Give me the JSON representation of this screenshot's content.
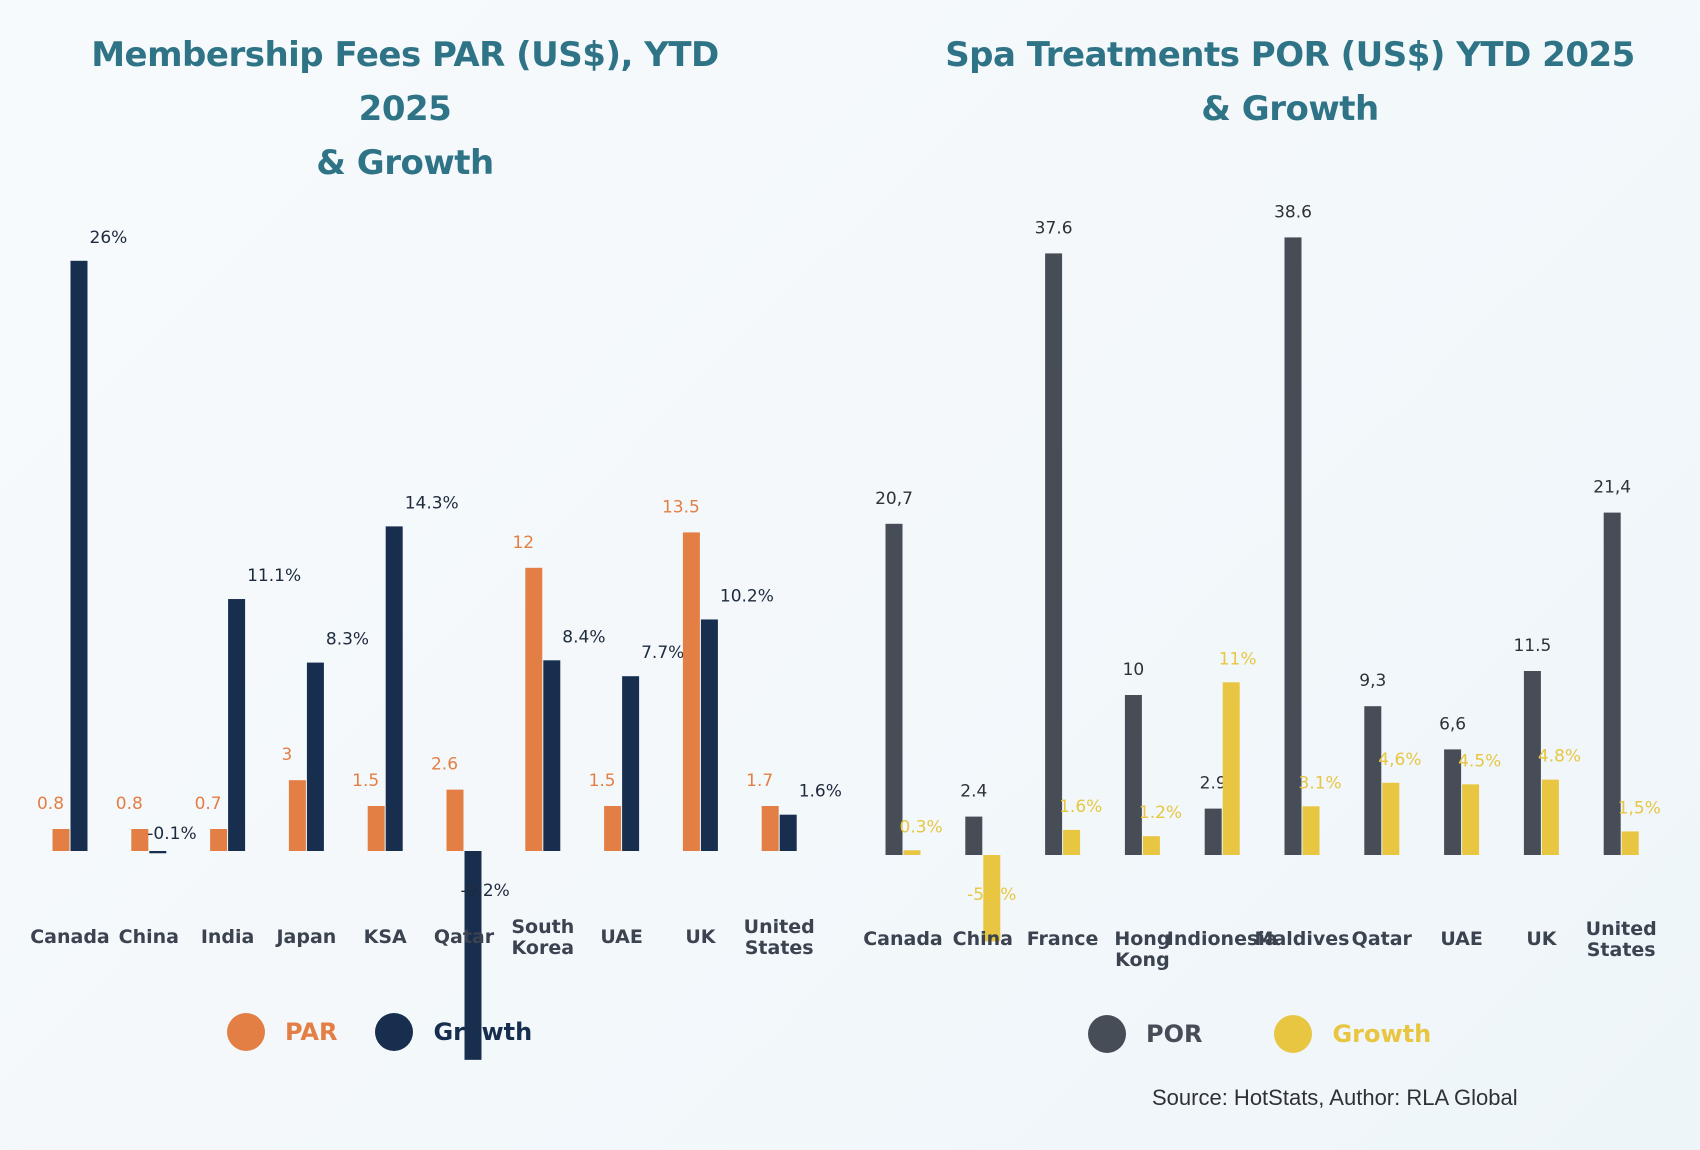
{
  "source": "Source: HotStats, Author: RLA Global",
  "chart_data": [
    {
      "type": "bar",
      "title": "Membership Fees PAR (US$), YTD 2025",
      "subtitle": "& Growth",
      "categories": [
        "Canada",
        "China",
        "India",
        "Japan",
        "KSA",
        "Qatar",
        "South Korea",
        "UAE",
        "UK",
        "United States"
      ],
      "series": [
        {
          "name": "PAR",
          "color": "#e37f44",
          "values": [
            0.8,
            0.8,
            0.7,
            3,
            1.5,
            2.6,
            12,
            1.5,
            13.5,
            1.7
          ],
          "labels": [
            "0.8",
            "0.8",
            "0.7",
            "3",
            "1.5",
            "2.6",
            "12",
            "1.5",
            "13.5",
            "1.7"
          ]
        },
        {
          "name": "Growth",
          "color": "#172e4e",
          "values": [
            26,
            -0.1,
            11.1,
            8.3,
            14.3,
            -9.2,
            8.4,
            7.7,
            10.2,
            1.6
          ],
          "labels": [
            "26%",
            "-0.1%",
            "11.1%",
            "8.3%",
            "14.3%",
            "-9.2%",
            "8.4%",
            "7.7%",
            "10.2%",
            "1.6%"
          ]
        }
      ],
      "legend": [
        "PAR",
        "Growth"
      ],
      "legend_position": "bottom",
      "xlabel": "",
      "ylabel": "",
      "grid": false
    },
    {
      "type": "bar",
      "title": "Spa Treatments POR  (US$) YTD 2025",
      "subtitle": "& Growth",
      "categories": [
        "Canada",
        "China",
        "France",
        "Hong Kong",
        "Indionesia",
        "Maldives",
        "Qatar",
        "UAE",
        "UK",
        "United States"
      ],
      "series": [
        {
          "name": "POR",
          "color": "#474d57",
          "values": [
            20.7,
            2.4,
            37.6,
            10,
            2.9,
            38.6,
            9.3,
            6.6,
            11.5,
            21.4
          ],
          "labels": [
            "20,7",
            "2.4",
            "37.6",
            "10",
            "2.9",
            "38.6",
            "9,3",
            "6,6",
            "11.5",
            "21,4"
          ]
        },
        {
          "name": "Growth",
          "color": "#e8c642",
          "values": [
            0.3,
            -5.5,
            1.6,
            1.2,
            11,
            3.1,
            4.6,
            4.5,
            4.8,
            1.5
          ],
          "labels": [
            "0.3%",
            "-5.5%",
            "1.6%",
            "1.2%",
            "11%",
            "3.1%",
            "4,6%",
            "4.5%",
            "4.8%",
            "1,5%"
          ]
        }
      ],
      "legend": [
        "POR",
        "Growth"
      ],
      "legend_position": "bottom",
      "xlabel": "",
      "ylabel": "",
      "grid": false
    }
  ]
}
